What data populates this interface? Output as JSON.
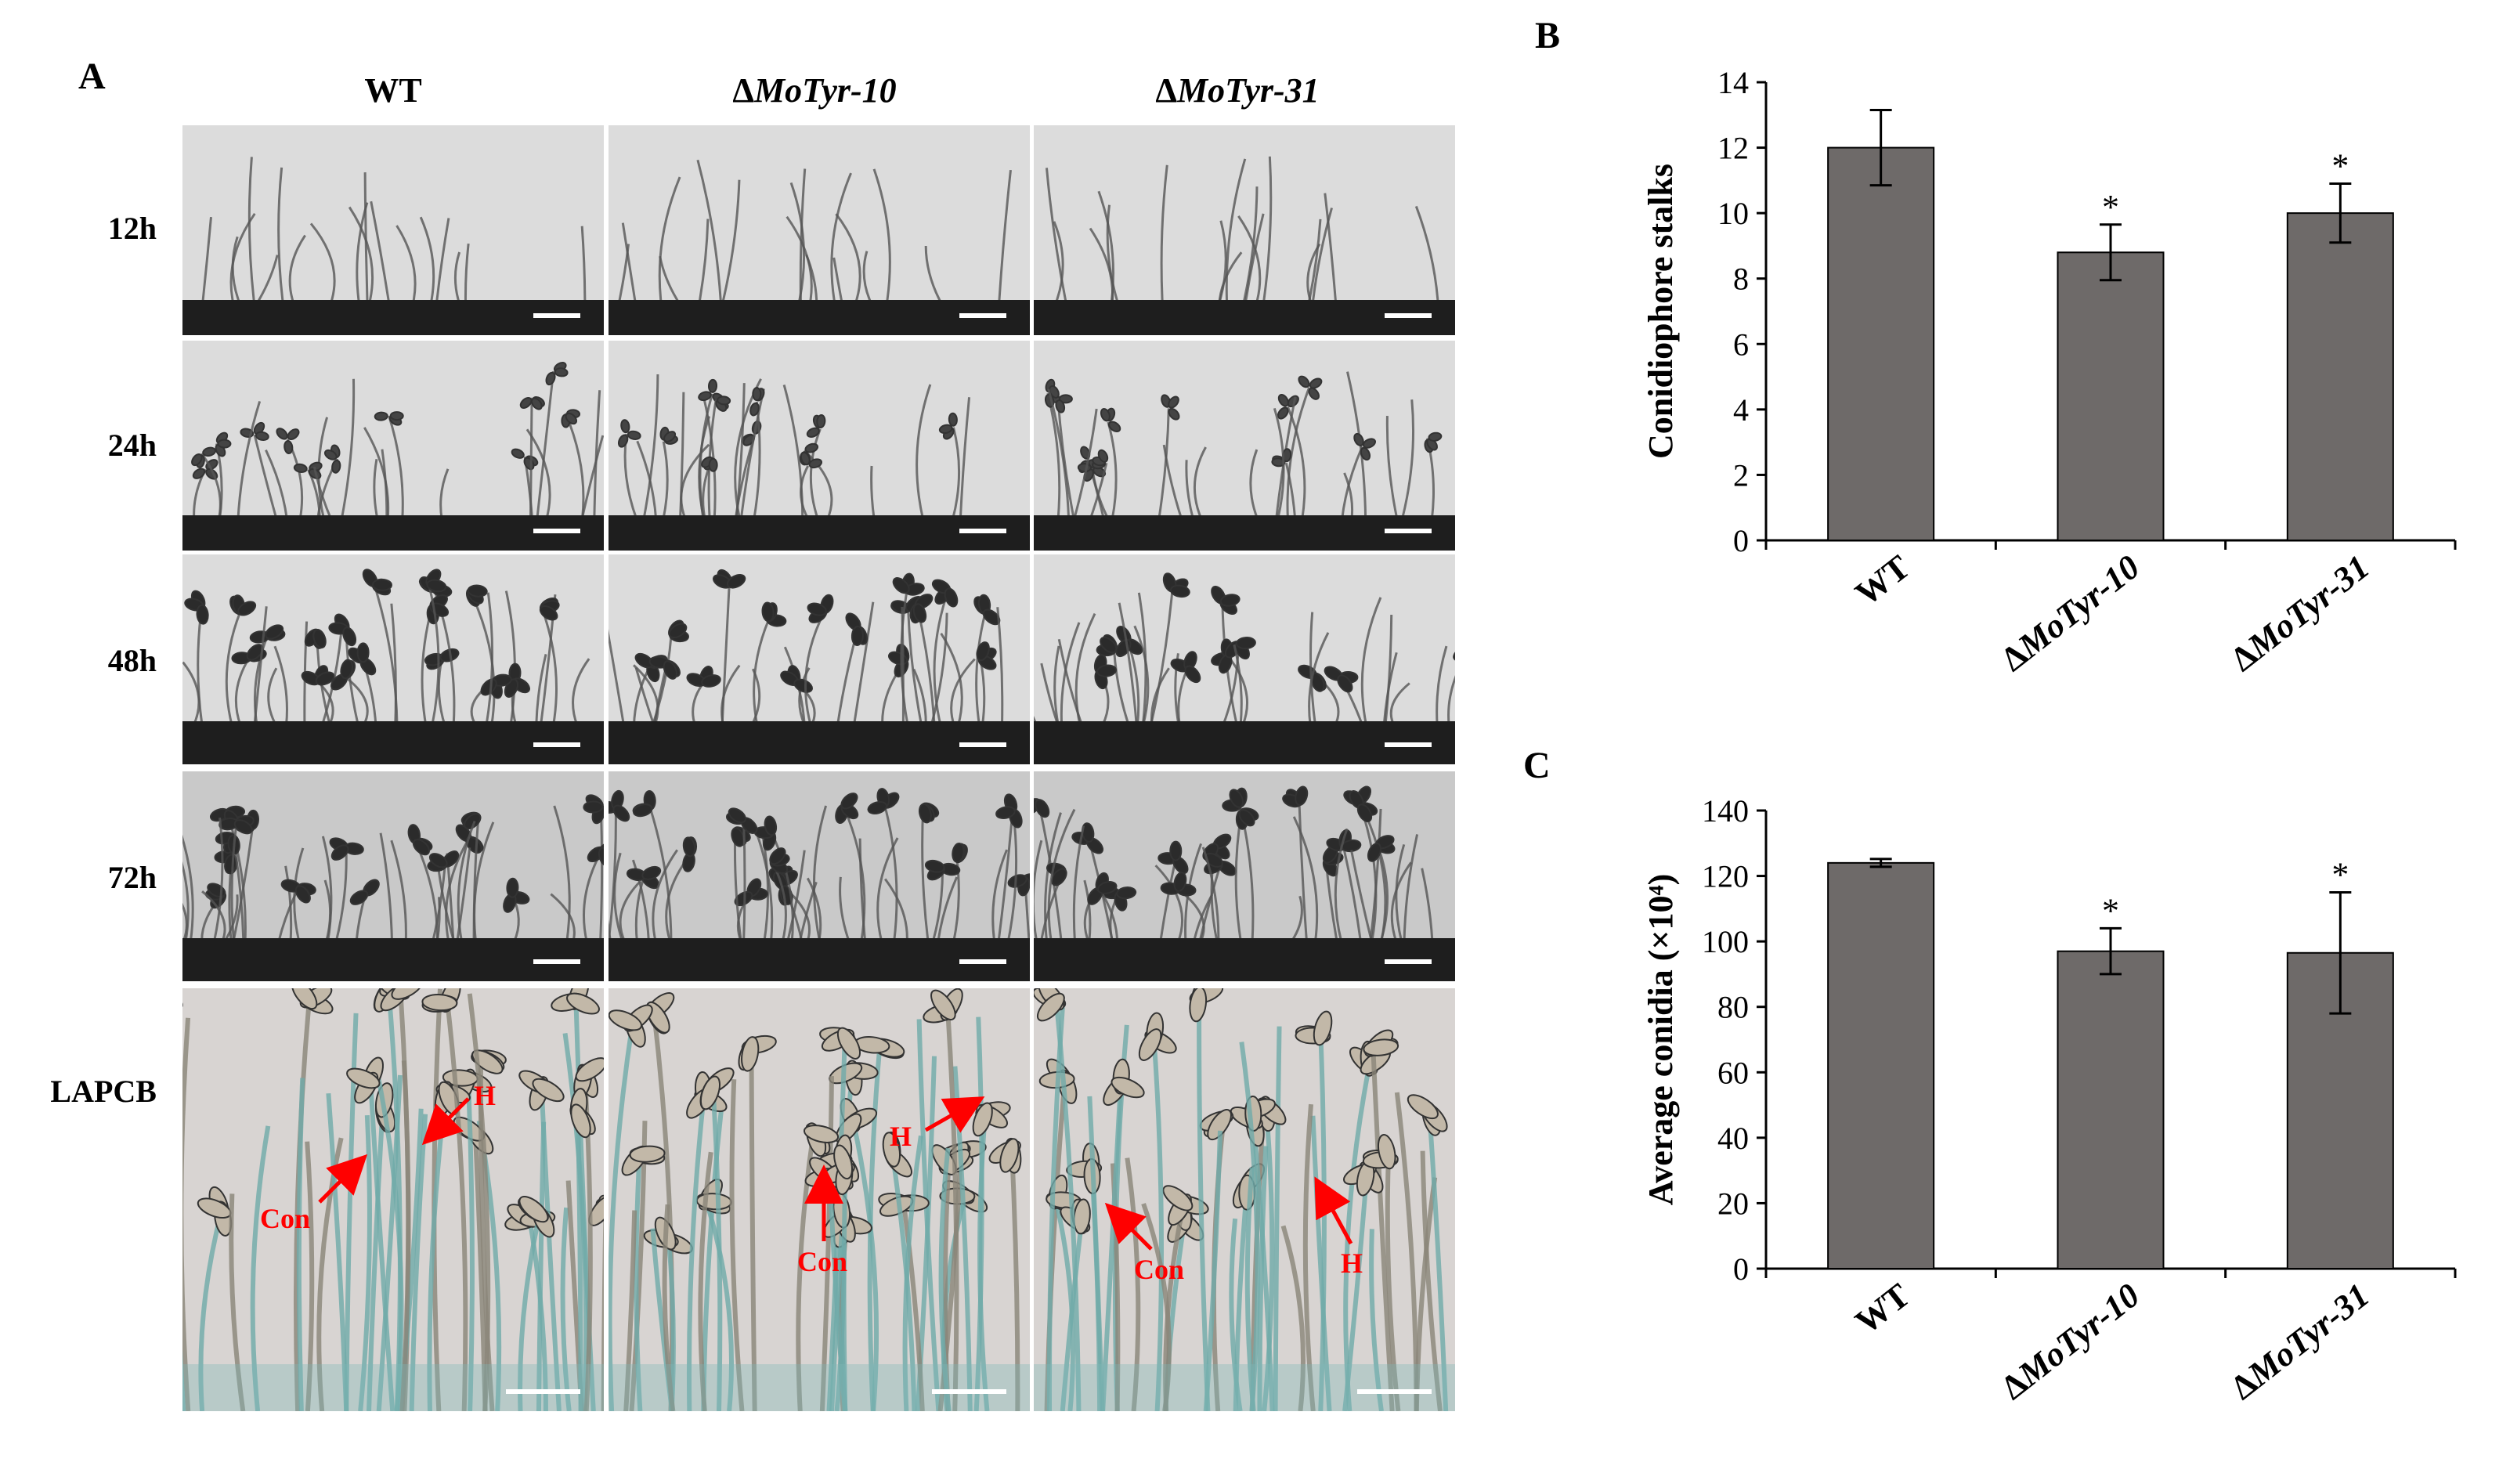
{
  "panel_labels": {
    "a": "A",
    "b": "B",
    "c": "C"
  },
  "columns": [
    "WT",
    "ΔMoTyr-10",
    "ΔMoTyr-31"
  ],
  "columns_italic": [
    "",
    "MoTyr-10",
    "MoTyr-31"
  ],
  "rows": [
    "12h",
    "24h",
    "48h",
    "72h",
    "LAPCB"
  ],
  "lapcb_annotations": {
    "wt": {
      "h": "H",
      "con": "Con"
    },
    "tyr10": {
      "h": "H",
      "con": "Con"
    },
    "tyr31": {
      "h": "H",
      "con": "Con"
    }
  },
  "colors": {
    "bar": "#6e6a69",
    "annotation": "#ff0000",
    "lapcb_tint": "#7fb6b8"
  },
  "chart_data": [
    {
      "type": "bar",
      "panel": "B",
      "categories": [
        "WT",
        "ΔMoTyr-10",
        "ΔMoTyr-31"
      ],
      "values": [
        12.0,
        8.8,
        10.0
      ],
      "errors": [
        1.15,
        0.85,
        0.9
      ],
      "significance": [
        "",
        "*",
        "*"
      ],
      "title": "",
      "xlabel": "",
      "ylabel": "Conidiophore stalks",
      "ylim": [
        0,
        14
      ],
      "yticks": [
        0,
        2,
        4,
        6,
        8,
        10,
        12,
        14
      ],
      "ytick_labels": [
        "0",
        "2",
        "4",
        "6",
        "8",
        "10",
        "12",
        "14"
      ],
      "grid": false
    },
    {
      "type": "bar",
      "panel": "C",
      "categories": [
        "WT",
        "ΔMoTyr-10",
        "ΔMoTyr-31"
      ],
      "values": [
        124,
        97,
        96.5
      ],
      "errors": [
        1.2,
        7,
        18.5
      ],
      "significance": [
        "",
        "*",
        "*"
      ],
      "title": "",
      "xlabel": "",
      "ylabel": "Average conidia (×10⁴)",
      "ylim": [
        0,
        140
      ],
      "yticks": [
        0,
        20,
        40,
        60,
        80,
        100,
        120,
        140
      ],
      "ytick_labels": [
        "0",
        "20",
        "40",
        "60",
        "80",
        "100",
        "120",
        "140"
      ],
      "grid": false
    }
  ]
}
